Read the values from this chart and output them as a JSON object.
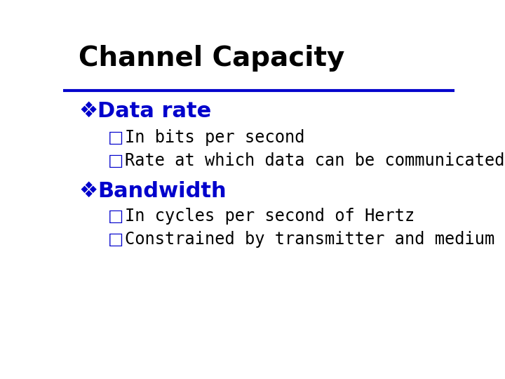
{
  "title": "Channel Capacity",
  "title_color": "#000000",
  "title_fontsize": 28,
  "separator_color": "#0000CC",
  "separator_linewidth": 3,
  "bg_color": "#ffffff",
  "bullet1_text": "Data rate",
  "bullet1_color": "#0000CC",
  "bullet1_fontsize": 22,
  "bullet2_text": "Bandwidth",
  "bullet2_color": "#0000CC",
  "bullet2_fontsize": 22,
  "sub_bullet_color": "#0000CC",
  "sub_bullet_fontsize": 17,
  "subitems1": [
    "In bits per second",
    "Rate at which data can be communicated"
  ],
  "subitems2": [
    "In cycles per second of Hertz",
    "Constrained by transmitter and medium"
  ],
  "sub_text_color": "#000000",
  "sub_text_fontsize": 17
}
